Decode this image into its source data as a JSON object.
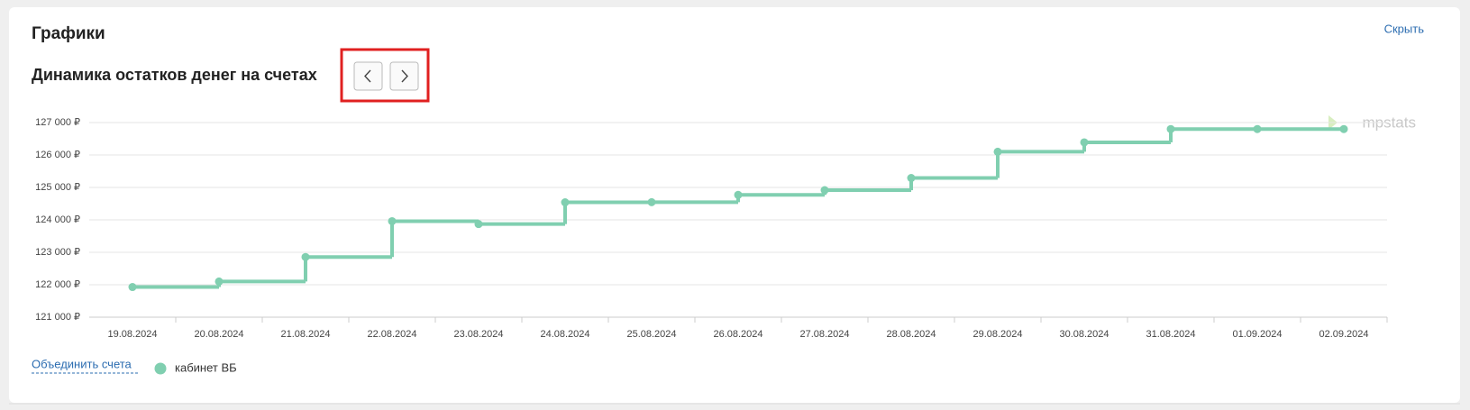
{
  "header": {
    "title": "Графики",
    "hide_link": "Скрыть"
  },
  "controls": {
    "merge_link": "Объединить счета",
    "watermark": "mpstats"
  },
  "chart_data": {
    "type": "line",
    "step": true,
    "title": "Динамика остатков денег на счетах",
    "categories": [
      "19.08.2024",
      "20.08.2024",
      "21.08.2024",
      "22.08.2024",
      "23.08.2024",
      "24.08.2024",
      "25.08.2024",
      "26.08.2024",
      "27.08.2024",
      "28.08.2024",
      "29.08.2024",
      "30.08.2024",
      "31.08.2024",
      "01.09.2024",
      "02.09.2024"
    ],
    "series": [
      {
        "name": "кабинет ВБ",
        "color": "#80cfb0",
        "values": [
          121930,
          122100,
          122855,
          123960,
          123870,
          124540,
          124545,
          124770,
          124915,
          125290,
          126100,
          126390,
          126800,
          126800,
          126800
        ]
      }
    ],
    "ylim": [
      121000,
      127000
    ],
    "yticks": [
      {
        "value": 121000,
        "label": "121 000 ₽"
      },
      {
        "value": 122000,
        "label": "122 000 ₽"
      },
      {
        "value": 123000,
        "label": "123 000 ₽"
      },
      {
        "value": 124000,
        "label": "124 000 ₽"
      },
      {
        "value": 125000,
        "label": "125 000 ₽"
      },
      {
        "value": 126000,
        "label": "126 000 ₽"
      },
      {
        "value": 127000,
        "label": "127 000 ₽"
      }
    ],
    "grid": true
  }
}
